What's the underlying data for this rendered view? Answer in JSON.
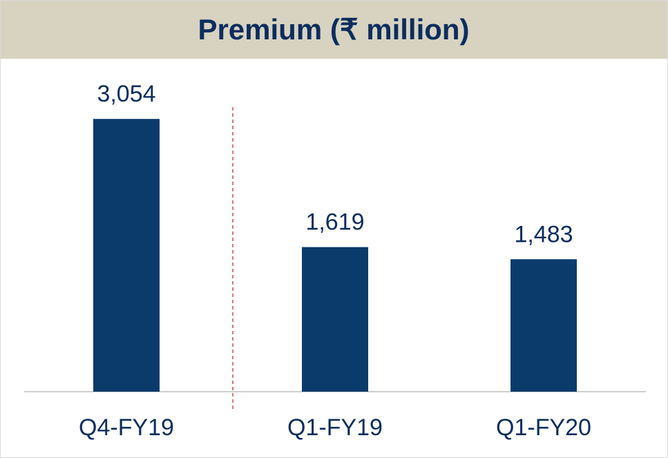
{
  "chart_data": {
    "type": "bar",
    "title": "Premium (₹ million)",
    "categories": [
      "Q4-FY19",
      "Q1-FY19",
      "Q1-FY20"
    ],
    "values": [
      3054,
      1619,
      1483
    ],
    "value_labels": [
      "3,054",
      "1,619",
      "1,483"
    ],
    "color": "#0b3b6b",
    "ylim": [
      0,
      3500
    ]
  }
}
